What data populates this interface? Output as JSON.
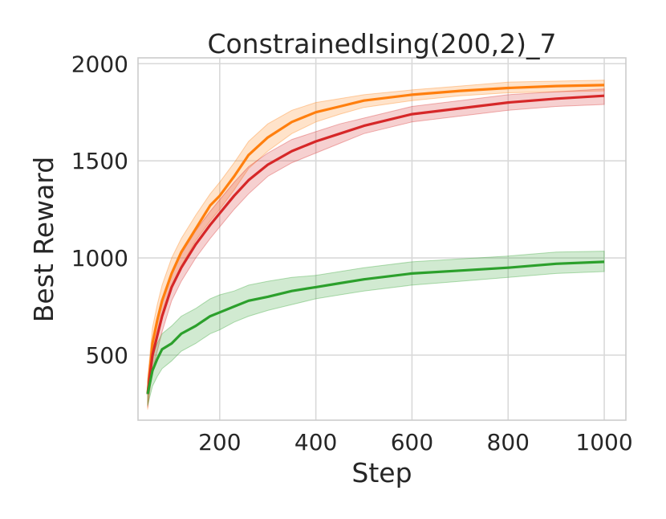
{
  "chart_data": {
    "type": "line",
    "title": "ConstrainedIsing(200,2)_7",
    "xlabel": "Step",
    "ylabel": "Best Reward",
    "xlim": [
      30,
      1045
    ],
    "ylim": [
      165,
      2030
    ],
    "xticks": [
      200,
      400,
      600,
      800,
      1000
    ],
    "yticks": [
      500,
      1000,
      1500,
      2000
    ],
    "grid": true,
    "legend": "none",
    "series": [
      {
        "color": "#ff7f0e",
        "band": true,
        "x": [
          50,
          60,
          70,
          80,
          100,
          120,
          150,
          180,
          200,
          230,
          260,
          300,
          350,
          400,
          450,
          500,
          600,
          700,
          800,
          900,
          1000
        ],
        "y": [
          300,
          560,
          680,
          780,
          920,
          1030,
          1150,
          1270,
          1320,
          1420,
          1530,
          1620,
          1700,
          1750,
          1780,
          1810,
          1840,
          1860,
          1875,
          1885,
          1890
        ],
        "lower": [
          220,
          470,
          580,
          690,
          840,
          960,
          1090,
          1190,
          1250,
          1350,
          1460,
          1550,
          1640,
          1700,
          1740,
          1775,
          1810,
          1835,
          1850,
          1855,
          1860
        ],
        "upper": [
          380,
          640,
          760,
          860,
          1000,
          1100,
          1220,
          1330,
          1390,
          1490,
          1600,
          1690,
          1760,
          1800,
          1820,
          1840,
          1865,
          1885,
          1905,
          1910,
          1915
        ]
      },
      {
        "color": "#d62728",
        "band": true,
        "x": [
          50,
          60,
          70,
          80,
          100,
          120,
          150,
          180,
          200,
          230,
          260,
          300,
          350,
          400,
          450,
          500,
          600,
          700,
          800,
          900,
          1000
        ],
        "y": [
          300,
          500,
          600,
          700,
          850,
          950,
          1070,
          1170,
          1230,
          1320,
          1400,
          1480,
          1550,
          1600,
          1640,
          1680,
          1740,
          1770,
          1800,
          1820,
          1835
        ],
        "lower": [
          230,
          420,
          520,
          620,
          780,
          880,
          1000,
          1100,
          1160,
          1250,
          1330,
          1420,
          1490,
          1540,
          1590,
          1640,
          1700,
          1730,
          1760,
          1780,
          1790
        ],
        "upper": [
          370,
          580,
          680,
          780,
          920,
          1020,
          1140,
          1240,
          1300,
          1390,
          1470,
          1540,
          1610,
          1650,
          1690,
          1720,
          1780,
          1810,
          1840,
          1855,
          1870
        ]
      },
      {
        "color": "#2ca02c",
        "band": true,
        "x": [
          50,
          60,
          70,
          80,
          100,
          120,
          150,
          180,
          200,
          230,
          260,
          300,
          350,
          400,
          450,
          500,
          600,
          700,
          800,
          900,
          1000
        ],
        "y": [
          300,
          420,
          480,
          530,
          560,
          610,
          650,
          700,
          720,
          750,
          780,
          800,
          830,
          850,
          870,
          890,
          920,
          935,
          950,
          970,
          980
        ],
        "lower": [
          240,
          340,
          390,
          430,
          470,
          520,
          560,
          610,
          630,
          670,
          700,
          730,
          760,
          790,
          810,
          830,
          860,
          880,
          900,
          920,
          930
        ],
        "upper": [
          360,
          500,
          560,
          610,
          650,
          700,
          740,
          790,
          810,
          830,
          860,
          880,
          900,
          910,
          930,
          950,
          980,
          995,
          1010,
          1030,
          1035
        ]
      }
    ]
  }
}
